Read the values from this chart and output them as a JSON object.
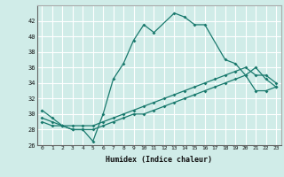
{
  "xlabel": "Humidex (Indice chaleur)",
  "line_color": "#1a7a6e",
  "bg_color": "#d0ece8",
  "grid_color": "#ffffff",
  "ylim": [
    26,
    44
  ],
  "xlim": [
    -0.5,
    23.5
  ],
  "yticks": [
    26,
    28,
    30,
    32,
    34,
    36,
    38,
    40,
    42
  ],
  "xticks": [
    0,
    1,
    2,
    3,
    4,
    5,
    6,
    7,
    8,
    9,
    10,
    11,
    12,
    13,
    14,
    15,
    16,
    17,
    18,
    19,
    20,
    21,
    22,
    23
  ],
  "series1_x": [
    0,
    1,
    2,
    3,
    4,
    5,
    6,
    7,
    8,
    9,
    10,
    11,
    13,
    14,
    15,
    16,
    18,
    19,
    20,
    21,
    22,
    23
  ],
  "series1_y": [
    30.5,
    29.5,
    28.5,
    28,
    28,
    26.5,
    30,
    34.5,
    36.5,
    39.5,
    41.5,
    40.5,
    43,
    42.5,
    41.5,
    41.5,
    37,
    36.5,
    35,
    36,
    34.5,
    33.5
  ],
  "series2_x": [
    0,
    1,
    2,
    3,
    4,
    5,
    6,
    7,
    8,
    9,
    10,
    11,
    12,
    13,
    14,
    15,
    16,
    17,
    18,
    19,
    20,
    21,
    22,
    23
  ],
  "series2_y": [
    29.5,
    29,
    28.5,
    28.5,
    28.5,
    28.5,
    29,
    29.5,
    30,
    30.5,
    31,
    31.5,
    32,
    32.5,
    33,
    33.5,
    34,
    34.5,
    35,
    35.5,
    36,
    35,
    35,
    34
  ],
  "series3_x": [
    0,
    1,
    2,
    3,
    4,
    5,
    6,
    7,
    8,
    9,
    10,
    11,
    12,
    13,
    14,
    15,
    16,
    17,
    18,
    19,
    20,
    21,
    22,
    23
  ],
  "series3_y": [
    29,
    28.5,
    28.5,
    28,
    28,
    28,
    28.5,
    29,
    29.5,
    30,
    30,
    30.5,
    31,
    31.5,
    32,
    32.5,
    33,
    33.5,
    34,
    34.5,
    35,
    33,
    33,
    33.5
  ]
}
